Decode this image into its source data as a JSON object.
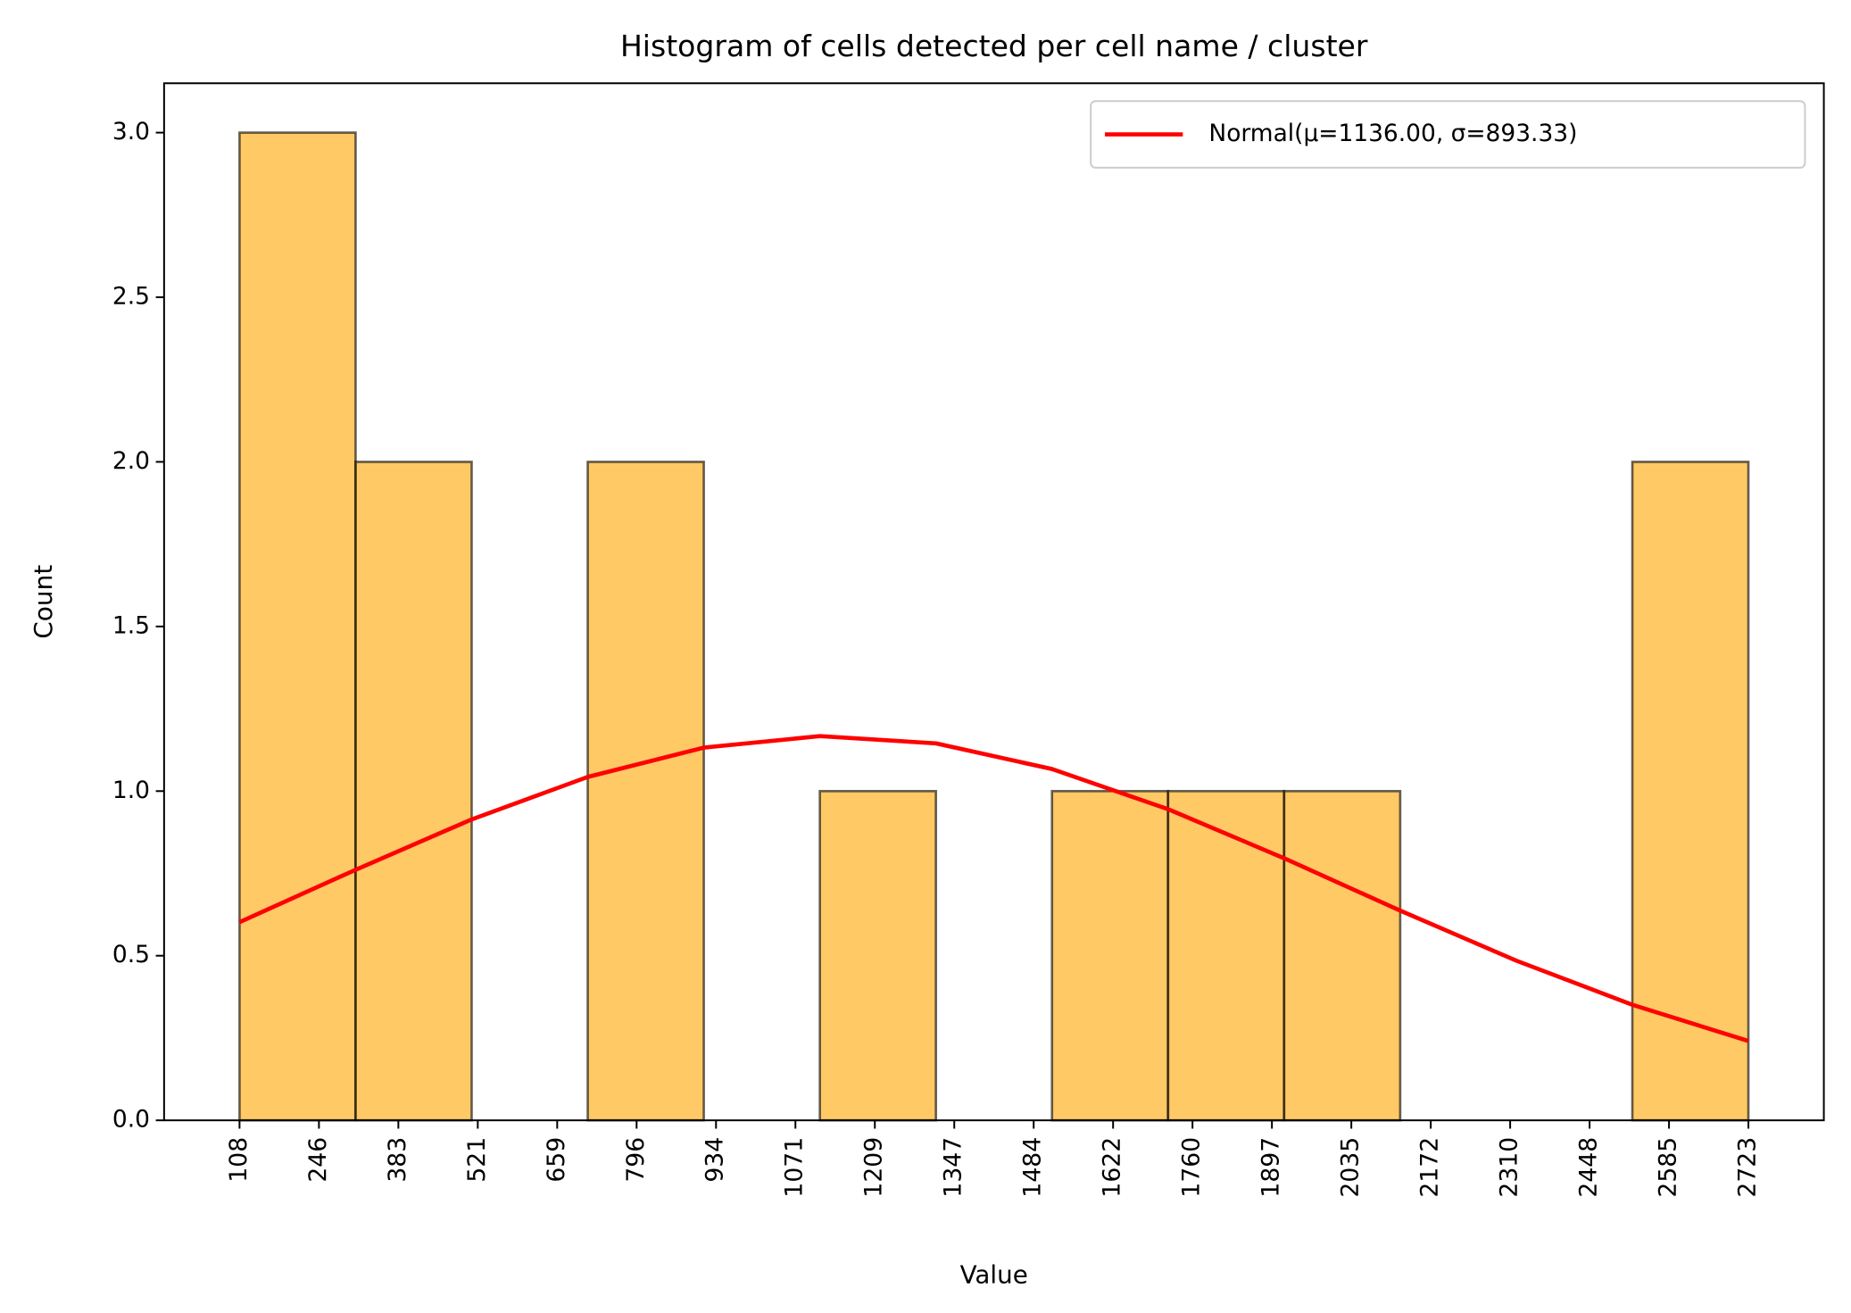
{
  "chart_data": {
    "type": "histogram",
    "title": "Histogram of cells detected per cell name / cluster",
    "xlabel": "Value",
    "ylabel": "Count",
    "bins": [
      108,
      309.15,
      510.31,
      711.46,
      912.62,
      1113.77,
      1314.92,
      1516.08,
      1717.23,
      1918.38,
      2119.54,
      2320.69,
      2521.85,
      2723
    ],
    "values": [
      3,
      2,
      0,
      2,
      0,
      1,
      0,
      1,
      1,
      1,
      0,
      0,
      2
    ],
    "color": "#ffa500",
    "edgecolor": "#000000",
    "alpha": 0.6,
    "series": [
      {
        "name": "Normal(μ=1136.00, σ=893.33)",
        "color": "#ff0000",
        "x": [
          108,
          309.15,
          510.31,
          711.46,
          912.62,
          1113.77,
          1314.92,
          1516.08,
          1717.23,
          1918.38,
          2119.54,
          2320.69,
          2521.85,
          2723
        ],
        "values": [
          0.602,
          0.761,
          0.914,
          1.043,
          1.132,
          1.167,
          1.145,
          1.067,
          0.945,
          0.796,
          0.637,
          0.485,
          0.351,
          0.241
        ]
      }
    ],
    "legend": "upper right",
    "xlim": [
      -22.75,
      2853.75
    ],
    "ylim": [
      0,
      3.15
    ],
    "xticks": [
      108,
      {
        "value": 245.63,
        "label": "246"
      },
      {
        "value": 383.26,
        "label": "383"
      },
      {
        "value": 520.89,
        "label": "521"
      },
      {
        "value": 658.53,
        "label": "659"
      },
      {
        "value": 796.16,
        "label": "796"
      },
      {
        "value": 933.79,
        "label": "934"
      },
      {
        "value": 1071.42,
        "label": "1071"
      },
      {
        "value": 1209.05,
        "label": "1209"
      },
      {
        "value": 1346.68,
        "label": "1347"
      },
      {
        "value": 1484.32,
        "label": "1484"
      },
      {
        "value": 1621.95,
        "label": "1622"
      },
      {
        "value": 1759.58,
        "label": "1760"
      },
      {
        "value": 1897.21,
        "label": "1897"
      },
      {
        "value": 2034.84,
        "label": "2035"
      },
      {
        "value": 2172.47,
        "label": "2172"
      },
      {
        "value": 2310.11,
        "label": "2310"
      },
      {
        "value": 2447.74,
        "label": "2448"
      },
      {
        "value": 2585.37,
        "label": "2585"
      },
      2723
    ],
    "yticks": [
      {
        "value": 0,
        "label": "0.0"
      },
      {
        "value": 0.5,
        "label": "0.5"
      },
      {
        "value": 1,
        "label": "1.0"
      },
      {
        "value": 1.5,
        "label": "1.5"
      },
      {
        "value": 2,
        "label": "2.0"
      },
      {
        "value": 2.5,
        "label": "2.5"
      },
      {
        "value": 3,
        "label": "3.0"
      }
    ]
  }
}
